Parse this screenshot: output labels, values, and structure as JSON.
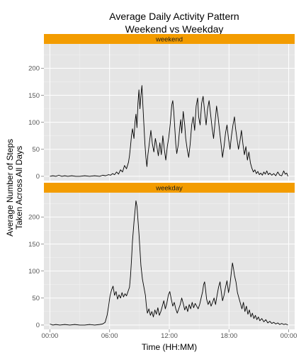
{
  "chart_data": {
    "type": "line",
    "title": "Average Daily Activity Pattern",
    "subtitle": "Weekend vs Weekday",
    "xlabel": "Time (HH:MM)",
    "ylabel_line1": "Average Number of Steps",
    "ylabel_line2": "Taken Across All Days",
    "x_ticks": [
      "00:00",
      "06:00",
      "12:00",
      "18:00",
      "00:00"
    ],
    "x_tick_hours": [
      0,
      6,
      12,
      18,
      24
    ],
    "xlim_hours": [
      -0.6,
      24.6
    ],
    "ylim": [
      -8,
      245
    ],
    "y_ticks": [
      0,
      50,
      100,
      150,
      200
    ],
    "grid": true,
    "strip_color": "#f39c00",
    "panel_bg": "#e5e5e5",
    "line_color": "#000000",
    "panels": [
      {
        "name": "weekend",
        "series": [
          {
            "t": 0,
            "v": 0
          },
          {
            "t": 0.3,
            "v": 1
          },
          {
            "t": 0.6,
            "v": 0
          },
          {
            "t": 0.9,
            "v": 2
          },
          {
            "t": 1.2,
            "v": 0
          },
          {
            "t": 1.5,
            "v": 1
          },
          {
            "t": 1.8,
            "v": 0
          },
          {
            "t": 2.2,
            "v": 1
          },
          {
            "t": 2.6,
            "v": 0
          },
          {
            "t": 3.0,
            "v": 0
          },
          {
            "t": 3.5,
            "v": 1
          },
          {
            "t": 4.0,
            "v": 0
          },
          {
            "t": 4.5,
            "v": 1
          },
          {
            "t": 5.0,
            "v": 0
          },
          {
            "t": 5.3,
            "v": 2
          },
          {
            "t": 5.6,
            "v": 1
          },
          {
            "t": 5.9,
            "v": 3
          },
          {
            "t": 6.1,
            "v": 2
          },
          {
            "t": 6.3,
            "v": 5
          },
          {
            "t": 6.5,
            "v": 3
          },
          {
            "t": 6.7,
            "v": 8
          },
          {
            "t": 6.9,
            "v": 4
          },
          {
            "t": 7.1,
            "v": 12
          },
          {
            "t": 7.3,
            "v": 8
          },
          {
            "t": 7.5,
            "v": 20
          },
          {
            "t": 7.7,
            "v": 14
          },
          {
            "t": 7.9,
            "v": 26
          },
          {
            "t": 8.0,
            "v": 38
          },
          {
            "t": 8.1,
            "v": 55
          },
          {
            "t": 8.2,
            "v": 75
          },
          {
            "t": 8.3,
            "v": 88
          },
          {
            "t": 8.45,
            "v": 70
          },
          {
            "t": 8.55,
            "v": 100
          },
          {
            "t": 8.65,
            "v": 115
          },
          {
            "t": 8.75,
            "v": 90
          },
          {
            "t": 8.85,
            "v": 135
          },
          {
            "t": 8.95,
            "v": 160
          },
          {
            "t": 9.05,
            "v": 125
          },
          {
            "t": 9.15,
            "v": 150
          },
          {
            "t": 9.25,
            "v": 168
          },
          {
            "t": 9.35,
            "v": 130
          },
          {
            "t": 9.45,
            "v": 95
          },
          {
            "t": 9.55,
            "v": 60
          },
          {
            "t": 9.65,
            "v": 35
          },
          {
            "t": 9.75,
            "v": 18
          },
          {
            "t": 9.85,
            "v": 40
          },
          {
            "t": 10.0,
            "v": 62
          },
          {
            "t": 10.15,
            "v": 85
          },
          {
            "t": 10.3,
            "v": 60
          },
          {
            "t": 10.45,
            "v": 45
          },
          {
            "t": 10.6,
            "v": 70
          },
          {
            "t": 10.75,
            "v": 55
          },
          {
            "t": 10.9,
            "v": 38
          },
          {
            "t": 11.05,
            "v": 62
          },
          {
            "t": 11.2,
            "v": 40
          },
          {
            "t": 11.35,
            "v": 75
          },
          {
            "t": 11.5,
            "v": 50
          },
          {
            "t": 11.65,
            "v": 30
          },
          {
            "t": 11.8,
            "v": 55
          },
          {
            "t": 11.95,
            "v": 72
          },
          {
            "t": 12.1,
            "v": 98
          },
          {
            "t": 12.25,
            "v": 132
          },
          {
            "t": 12.35,
            "v": 140
          },
          {
            "t": 12.45,
            "v": 120
          },
          {
            "t": 12.55,
            "v": 90
          },
          {
            "t": 12.65,
            "v": 60
          },
          {
            "t": 12.75,
            "v": 42
          },
          {
            "t": 12.9,
            "v": 58
          },
          {
            "t": 13.05,
            "v": 90
          },
          {
            "t": 13.15,
            "v": 105
          },
          {
            "t": 13.25,
            "v": 80
          },
          {
            "t": 13.4,
            "v": 120
          },
          {
            "t": 13.55,
            "v": 95
          },
          {
            "t": 13.65,
            "v": 70
          },
          {
            "t": 13.8,
            "v": 50
          },
          {
            "t": 13.95,
            "v": 35
          },
          {
            "t": 14.1,
            "v": 60
          },
          {
            "t": 14.25,
            "v": 95
          },
          {
            "t": 14.4,
            "v": 110
          },
          {
            "t": 14.55,
            "v": 85
          },
          {
            "t": 14.7,
            "v": 130
          },
          {
            "t": 14.85,
            "v": 145
          },
          {
            "t": 14.95,
            "v": 110
          },
          {
            "t": 15.1,
            "v": 95
          },
          {
            "t": 15.25,
            "v": 135
          },
          {
            "t": 15.4,
            "v": 148
          },
          {
            "t": 15.55,
            "v": 120
          },
          {
            "t": 15.7,
            "v": 95
          },
          {
            "t": 15.85,
            "v": 125
          },
          {
            "t": 16.0,
            "v": 140
          },
          {
            "t": 16.15,
            "v": 115
          },
          {
            "t": 16.3,
            "v": 90
          },
          {
            "t": 16.45,
            "v": 70
          },
          {
            "t": 16.6,
            "v": 100
          },
          {
            "t": 16.75,
            "v": 130
          },
          {
            "t": 16.9,
            "v": 110
          },
          {
            "t": 17.05,
            "v": 85
          },
          {
            "t": 17.2,
            "v": 60
          },
          {
            "t": 17.35,
            "v": 35
          },
          {
            "t": 17.5,
            "v": 55
          },
          {
            "t": 17.65,
            "v": 80
          },
          {
            "t": 17.8,
            "v": 95
          },
          {
            "t": 17.95,
            "v": 70
          },
          {
            "t": 18.1,
            "v": 50
          },
          {
            "t": 18.25,
            "v": 75
          },
          {
            "t": 18.4,
            "v": 95
          },
          {
            "t": 18.55,
            "v": 110
          },
          {
            "t": 18.65,
            "v": 90
          },
          {
            "t": 18.8,
            "v": 70
          },
          {
            "t": 18.95,
            "v": 50
          },
          {
            "t": 19.1,
            "v": 65
          },
          {
            "t": 19.25,
            "v": 85
          },
          {
            "t": 19.4,
            "v": 60
          },
          {
            "t": 19.55,
            "v": 40
          },
          {
            "t": 19.7,
            "v": 55
          },
          {
            "t": 19.85,
            "v": 30
          },
          {
            "t": 20.0,
            "v": 45
          },
          {
            "t": 20.15,
            "v": 25
          },
          {
            "t": 20.3,
            "v": 15
          },
          {
            "t": 20.45,
            "v": 8
          },
          {
            "t": 20.6,
            "v": 12
          },
          {
            "t": 20.75,
            "v": 5
          },
          {
            "t": 20.9,
            "v": 9
          },
          {
            "t": 21.05,
            "v": 3
          },
          {
            "t": 21.2,
            "v": 6
          },
          {
            "t": 21.35,
            "v": 2
          },
          {
            "t": 21.5,
            "v": 8
          },
          {
            "t": 21.65,
            "v": 4
          },
          {
            "t": 21.8,
            "v": 10
          },
          {
            "t": 21.95,
            "v": 3
          },
          {
            "t": 22.1,
            "v": 6
          },
          {
            "t": 22.3,
            "v": 2
          },
          {
            "t": 22.5,
            "v": 5
          },
          {
            "t": 22.7,
            "v": 1
          },
          {
            "t": 22.9,
            "v": 8
          },
          {
            "t": 23.1,
            "v": 2
          },
          {
            "t": 23.3,
            "v": 1
          },
          {
            "t": 23.5,
            "v": 10
          },
          {
            "t": 23.65,
            "v": 4
          },
          {
            "t": 23.8,
            "v": 6
          },
          {
            "t": 23.92,
            "v": 0
          }
        ]
      },
      {
        "name": "weekday",
        "series": [
          {
            "t": 0,
            "v": 2
          },
          {
            "t": 0.3,
            "v": 0
          },
          {
            "t": 0.6,
            "v": 1
          },
          {
            "t": 1.0,
            "v": 0
          },
          {
            "t": 1.5,
            "v": 1
          },
          {
            "t": 2.0,
            "v": 0
          },
          {
            "t": 2.5,
            "v": 1
          },
          {
            "t": 3.0,
            "v": 0
          },
          {
            "t": 3.5,
            "v": 0
          },
          {
            "t": 4.0,
            "v": 1
          },
          {
            "t": 4.5,
            "v": 0
          },
          {
            "t": 5.0,
            "v": 1
          },
          {
            "t": 5.3,
            "v": 2
          },
          {
            "t": 5.55,
            "v": 5
          },
          {
            "t": 5.75,
            "v": 18
          },
          {
            "t": 5.9,
            "v": 35
          },
          {
            "t": 6.05,
            "v": 55
          },
          {
            "t": 6.2,
            "v": 65
          },
          {
            "t": 6.35,
            "v": 72
          },
          {
            "t": 6.5,
            "v": 55
          },
          {
            "t": 6.65,
            "v": 62
          },
          {
            "t": 6.8,
            "v": 48
          },
          {
            "t": 6.95,
            "v": 56
          },
          {
            "t": 7.1,
            "v": 50
          },
          {
            "t": 7.25,
            "v": 60
          },
          {
            "t": 7.4,
            "v": 52
          },
          {
            "t": 7.55,
            "v": 58
          },
          {
            "t": 7.7,
            "v": 54
          },
          {
            "t": 7.85,
            "v": 62
          },
          {
            "t": 8.0,
            "v": 70
          },
          {
            "t": 8.1,
            "v": 90
          },
          {
            "t": 8.2,
            "v": 120
          },
          {
            "t": 8.3,
            "v": 155
          },
          {
            "t": 8.45,
            "v": 190
          },
          {
            "t": 8.55,
            "v": 210
          },
          {
            "t": 8.65,
            "v": 230
          },
          {
            "t": 8.75,
            "v": 220
          },
          {
            "t": 8.85,
            "v": 195
          },
          {
            "t": 8.95,
            "v": 170
          },
          {
            "t": 9.05,
            "v": 140
          },
          {
            "t": 9.15,
            "v": 110
          },
          {
            "t": 9.3,
            "v": 85
          },
          {
            "t": 9.45,
            "v": 70
          },
          {
            "t": 9.6,
            "v": 55
          },
          {
            "t": 9.7,
            "v": 35
          },
          {
            "t": 9.8,
            "v": 22
          },
          {
            "t": 9.95,
            "v": 30
          },
          {
            "t": 10.1,
            "v": 18
          },
          {
            "t": 10.25,
            "v": 25
          },
          {
            "t": 10.4,
            "v": 15
          },
          {
            "t": 10.55,
            "v": 28
          },
          {
            "t": 10.7,
            "v": 20
          },
          {
            "t": 10.85,
            "v": 32
          },
          {
            "t": 11.0,
            "v": 18
          },
          {
            "t": 11.15,
            "v": 25
          },
          {
            "t": 11.3,
            "v": 35
          },
          {
            "t": 11.45,
            "v": 45
          },
          {
            "t": 11.6,
            "v": 30
          },
          {
            "t": 11.75,
            "v": 40
          },
          {
            "t": 11.9,
            "v": 55
          },
          {
            "t": 12.05,
            "v": 62
          },
          {
            "t": 12.2,
            "v": 48
          },
          {
            "t": 12.35,
            "v": 35
          },
          {
            "t": 12.5,
            "v": 42
          },
          {
            "t": 12.65,
            "v": 30
          },
          {
            "t": 12.8,
            "v": 22
          },
          {
            "t": 12.95,
            "v": 30
          },
          {
            "t": 13.1,
            "v": 38
          },
          {
            "t": 13.25,
            "v": 50
          },
          {
            "t": 13.4,
            "v": 40
          },
          {
            "t": 13.55,
            "v": 28
          },
          {
            "t": 13.7,
            "v": 35
          },
          {
            "t": 13.85,
            "v": 25
          },
          {
            "t": 14.0,
            "v": 38
          },
          {
            "t": 14.15,
            "v": 30
          },
          {
            "t": 14.3,
            "v": 42
          },
          {
            "t": 14.45,
            "v": 32
          },
          {
            "t": 14.6,
            "v": 40
          },
          {
            "t": 14.75,
            "v": 35
          },
          {
            "t": 14.9,
            "v": 30
          },
          {
            "t": 15.05,
            "v": 38
          },
          {
            "t": 15.2,
            "v": 50
          },
          {
            "t": 15.35,
            "v": 62
          },
          {
            "t": 15.45,
            "v": 75
          },
          {
            "t": 15.55,
            "v": 80
          },
          {
            "t": 15.65,
            "v": 65
          },
          {
            "t": 15.75,
            "v": 48
          },
          {
            "t": 15.9,
            "v": 38
          },
          {
            "t": 16.05,
            "v": 45
          },
          {
            "t": 16.2,
            "v": 35
          },
          {
            "t": 16.35,
            "v": 42
          },
          {
            "t": 16.5,
            "v": 50
          },
          {
            "t": 16.65,
            "v": 38
          },
          {
            "t": 16.8,
            "v": 55
          },
          {
            "t": 16.95,
            "v": 70
          },
          {
            "t": 17.1,
            "v": 80
          },
          {
            "t": 17.2,
            "v": 65
          },
          {
            "t": 17.35,
            "v": 45
          },
          {
            "t": 17.5,
            "v": 55
          },
          {
            "t": 17.65,
            "v": 70
          },
          {
            "t": 17.8,
            "v": 82
          },
          {
            "t": 17.95,
            "v": 60
          },
          {
            "t": 18.1,
            "v": 75
          },
          {
            "t": 18.25,
            "v": 100
          },
          {
            "t": 18.35,
            "v": 115
          },
          {
            "t": 18.45,
            "v": 105
          },
          {
            "t": 18.55,
            "v": 92
          },
          {
            "t": 18.7,
            "v": 80
          },
          {
            "t": 18.85,
            "v": 60
          },
          {
            "t": 19.0,
            "v": 50
          },
          {
            "t": 19.15,
            "v": 40
          },
          {
            "t": 19.3,
            "v": 30
          },
          {
            "t": 19.45,
            "v": 42
          },
          {
            "t": 19.6,
            "v": 25
          },
          {
            "t": 19.75,
            "v": 35
          },
          {
            "t": 19.9,
            "v": 20
          },
          {
            "t": 20.05,
            "v": 28
          },
          {
            "t": 20.2,
            "v": 15
          },
          {
            "t": 20.35,
            "v": 22
          },
          {
            "t": 20.5,
            "v": 12
          },
          {
            "t": 20.65,
            "v": 18
          },
          {
            "t": 20.8,
            "v": 10
          },
          {
            "t": 20.95,
            "v": 15
          },
          {
            "t": 21.1,
            "v": 8
          },
          {
            "t": 21.3,
            "v": 12
          },
          {
            "t": 21.5,
            "v": 6
          },
          {
            "t": 21.7,
            "v": 10
          },
          {
            "t": 21.9,
            "v": 4
          },
          {
            "t": 22.1,
            "v": 7
          },
          {
            "t": 22.3,
            "v": 3
          },
          {
            "t": 22.5,
            "v": 5
          },
          {
            "t": 22.7,
            "v": 2
          },
          {
            "t": 22.9,
            "v": 4
          },
          {
            "t": 23.1,
            "v": 1
          },
          {
            "t": 23.3,
            "v": 3
          },
          {
            "t": 23.5,
            "v": 1
          },
          {
            "t": 23.7,
            "v": 2
          },
          {
            "t": 23.92,
            "v": 0
          }
        ]
      }
    ]
  }
}
